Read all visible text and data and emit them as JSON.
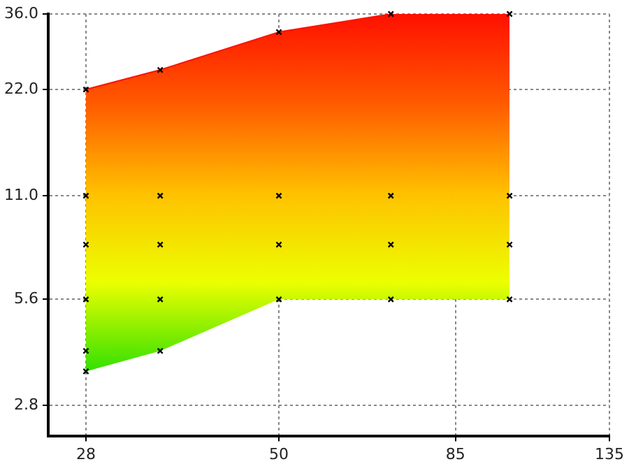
{
  "chart_data": {
    "type": "line",
    "log": "xy",
    "grid": true,
    "xlim": [
      25,
      135
    ],
    "xticks": [
      28,
      50,
      85,
      135
    ],
    "ylim": [
      2.3,
      36
    ],
    "yticks": [
      2.8,
      5.6,
      {
        "value": 11,
        "label": "11.0"
      },
      {
        "value": 22,
        "label": "22.0"
      },
      {
        "value": 36,
        "label": "36.0"
      }
    ],
    "series": [
      {
        "type": "line",
        "x": [
          28,
          35,
          50,
          70,
          100
        ],
        "values": [
          22,
          25,
          32,
          36,
          36
        ],
        "upper": [
          22,
          25,
          32,
          36,
          36
        ],
        "lower": [
          3.5,
          4,
          5.6,
          5.6,
          5.6
        ],
        "colors": [
          "#ff1000",
          "#ff5a00",
          "#ffc000",
          "#ecff00",
          "#33e000"
        ]
      },
      {
        "type": "scatter",
        "marker": "cross",
        "color": "#000000",
        "x": [
          28,
          28,
          28,
          28,
          28,
          28,
          35,
          35,
          35,
          35,
          35,
          50,
          50,
          50,
          50,
          70,
          70,
          70,
          70,
          100,
          100,
          100,
          100
        ],
        "values": [
          22,
          11,
          8,
          5.6,
          4,
          3.5,
          25,
          11,
          8,
          5.6,
          4,
          32,
          11,
          8,
          5.6,
          36,
          11,
          8,
          5.6,
          36,
          11,
          8,
          5.6
        ]
      }
    ]
  }
}
